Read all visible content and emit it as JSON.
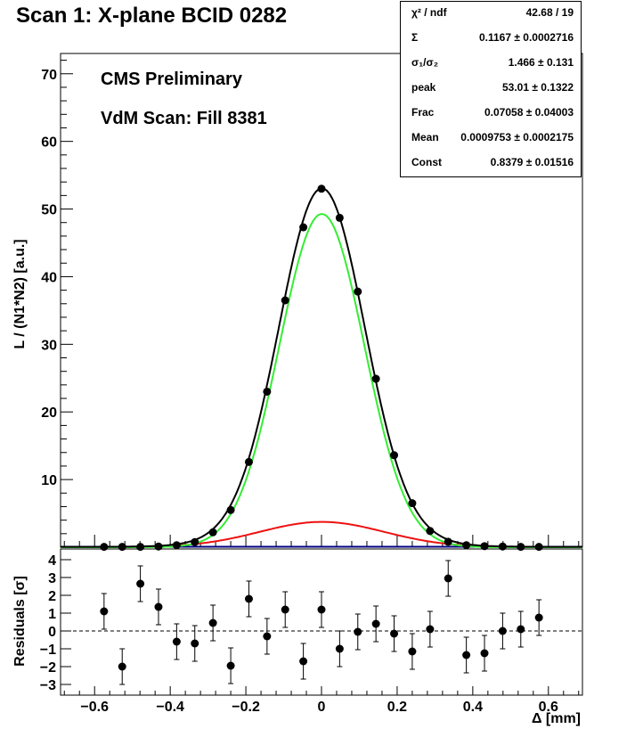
{
  "title": "Scan 1: X-plane BCID 0282",
  "annotations": [
    "CMS Preliminary",
    "VdM Scan: Fill 8381"
  ],
  "stats": [
    {
      "name": "χ² / ndf",
      "value": "42.68 / 19"
    },
    {
      "name": "Σ",
      "value": "0.1167 ± 0.0002716"
    },
    {
      "name": "σ₁/σ₂",
      "value": "1.466 ± 0.131"
    },
    {
      "name": "peak",
      "value": "53.01 ± 0.1322"
    },
    {
      "name": "Frac",
      "value": "0.07058 ± 0.04003"
    },
    {
      "name": "Mean",
      "value": "0.0009753 ± 0.0002175"
    },
    {
      "name": "Const",
      "value": "0.8379 ± 0.01516"
    }
  ],
  "colors": {
    "total_fit": "#000000",
    "narrow_gaussian": "#33ee33",
    "wide_gaussian": "#ee1111",
    "baseline": "#000080"
  },
  "chart_data": [
    {
      "type": "scatter",
      "xlabel": "Δ [mm]",
      "ylabel": "L / (N1*N2) [a.u.]",
      "xlim": [
        -0.69,
        0.69
      ],
      "ylim": [
        0,
        73
      ],
      "x_ticks": [
        "−0.6",
        "−0.4",
        "−0.2",
        "0",
        "0.2",
        "0.4",
        "0.6"
      ],
      "y_ticks": [
        "10",
        "20",
        "30",
        "40",
        "50",
        "60",
        "70"
      ],
      "x": [
        -0.575,
        -0.527,
        -0.479,
        -0.431,
        -0.383,
        -0.335,
        -0.287,
        -0.24,
        -0.192,
        -0.144,
        -0.096,
        -0.048,
        0.0,
        0.048,
        0.096,
        0.144,
        0.192,
        0.24,
        0.287,
        0.335,
        0.383,
        0.431,
        0.479,
        0.527,
        0.575
      ],
      "y": [
        0.05,
        0.05,
        0.05,
        0.1,
        0.3,
        0.75,
        2.2,
        5.5,
        12.6,
        23.0,
        36.5,
        47.3,
        53.0,
        48.7,
        37.8,
        24.9,
        13.6,
        6.5,
        2.4,
        0.8,
        0.3,
        0.15,
        0.1,
        0.05,
        0.05
      ],
      "series": [
        {
          "name": "total fit",
          "color": "#000000"
        },
        {
          "name": "narrow Gaussian",
          "color": "#33ee33"
        },
        {
          "name": "wide Gaussian",
          "color": "#ee1111"
        },
        {
          "name": "constant",
          "color": "#000080"
        }
      ],
      "fit": {
        "sigma_eff": 0.1167,
        "sigma_ratio": 1.466,
        "peak": 53.01,
        "frac": 0.07058,
        "mean": 0.0009753,
        "const": 0.8379
      }
    },
    {
      "type": "scatter",
      "ylabel": "Residuals [σ]",
      "ylim": [
        -3.6,
        4.6
      ],
      "y_ticks": [
        "−3",
        "−2",
        "−1",
        "0",
        "1",
        "2",
        "3",
        "4"
      ],
      "x": [
        -0.575,
        -0.527,
        -0.479,
        -0.431,
        -0.383,
        -0.335,
        -0.287,
        -0.24,
        -0.192,
        -0.144,
        -0.096,
        -0.048,
        0.0,
        0.048,
        0.096,
        0.144,
        0.192,
        0.24,
        0.287,
        0.335,
        0.383,
        0.431,
        0.479,
        0.527,
        0.575
      ],
      "y": [
        1.1,
        -2.0,
        2.65,
        1.35,
        -0.6,
        -0.7,
        0.45,
        -1.95,
        1.8,
        -0.3,
        1.2,
        -1.7,
        1.2,
        -1.0,
        -0.05,
        0.4,
        -0.15,
        -1.15,
        0.1,
        2.95,
        -1.35,
        -1.25,
        0.0,
        0.1,
        0.75
      ],
      "err": [
        1.0,
        1.0,
        1.0,
        1.0,
        1.0,
        1.0,
        1.0,
        1.0,
        1.0,
        1.0,
        1.0,
        1.0,
        1.0,
        1.0,
        1.0,
        1.0,
        1.0,
        1.0,
        1.0,
        1.0,
        1.0,
        1.0,
        1.0,
        1.0,
        1.0
      ],
      "reference_line": 0
    }
  ]
}
